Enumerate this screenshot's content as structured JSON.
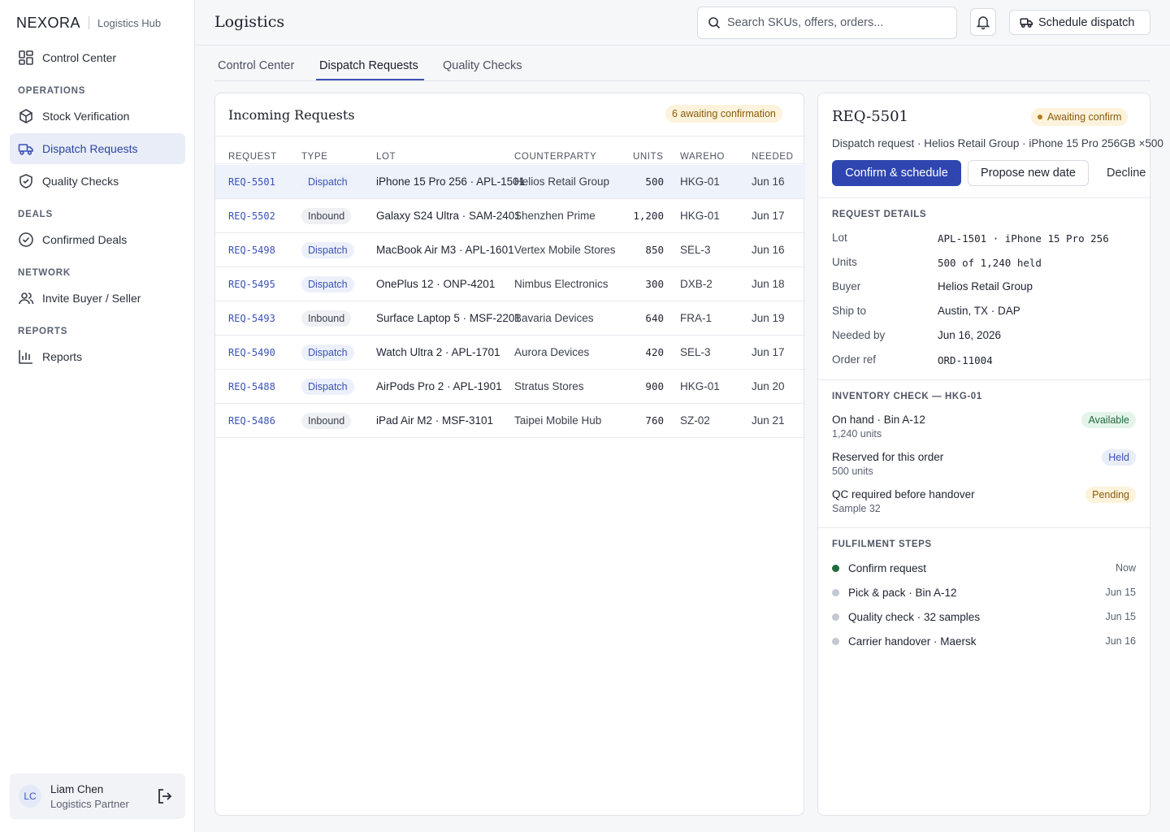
{
  "brand": {
    "name": "NEXORA",
    "sub": "Logistics Hub"
  },
  "sidebar": {
    "top_item": {
      "label": "Control Center",
      "icon": "dashboard-icon"
    },
    "sections": [
      {
        "title": "OPERATIONS",
        "items": [
          {
            "label": "Stock Verification",
            "icon": "box-icon"
          },
          {
            "label": "Dispatch Requests",
            "icon": "truck-icon",
            "active": true
          },
          {
            "label": "Quality Checks",
            "icon": "shield-check-icon"
          }
        ]
      },
      {
        "title": "DEALS",
        "items": [
          {
            "label": "Confirmed Deals",
            "icon": "check-circle-icon"
          }
        ]
      },
      {
        "title": "NETWORK",
        "items": [
          {
            "label": "Invite Buyer / Seller",
            "icon": "users-icon"
          }
        ]
      },
      {
        "title": "REPORTS",
        "items": [
          {
            "label": "Reports",
            "icon": "bar-chart-icon"
          }
        ]
      }
    ],
    "user": {
      "initials": "LC",
      "name": "Liam Chen",
      "role": "Logistics Partner"
    }
  },
  "header": {
    "title": "Logistics",
    "search_placeholder": "Search SKUs, offers, orders...",
    "schedule_label": "Schedule dispatch"
  },
  "tabs": [
    {
      "label": "Control Center"
    },
    {
      "label": "Dispatch Requests",
      "active": true
    },
    {
      "label": "Quality Checks"
    }
  ],
  "requests": {
    "title": "Incoming Requests",
    "awaiting": "6 awaiting confirmation",
    "columns": [
      "REQUEST",
      "TYPE",
      "LOT",
      "COUNTERPARTY",
      "UNITS",
      "WAREHO",
      "NEEDED"
    ],
    "rows": [
      {
        "id": "REQ-5501",
        "type": "Dispatch",
        "lot": "iPhone 15 Pro 256 · APL-1501",
        "counterparty": "Helios Retail Group",
        "units": "500",
        "warehouse": "HKG-01",
        "needed": "Jun 16"
      },
      {
        "id": "REQ-5502",
        "type": "Inbound",
        "lot": "Galaxy S24 Ultra · SAM-2401",
        "counterparty": "Shenzhen Prime",
        "units": "1,200",
        "warehouse": "HKG-01",
        "needed": "Jun 17"
      },
      {
        "id": "REQ-5498",
        "type": "Dispatch",
        "lot": "MacBook Air M3 · APL-1601",
        "counterparty": "Vertex Mobile Stores",
        "units": "850",
        "warehouse": "SEL-3",
        "needed": "Jun 16"
      },
      {
        "id": "REQ-5495",
        "type": "Dispatch",
        "lot": "OnePlus 12 · ONP-4201",
        "counterparty": "Nimbus Electronics",
        "units": "300",
        "warehouse": "DXB-2",
        "needed": "Jun 18"
      },
      {
        "id": "REQ-5493",
        "type": "Inbound",
        "lot": "Surface Laptop 5 · MSF-2201",
        "counterparty": "Bavaria Devices",
        "units": "640",
        "warehouse": "FRA-1",
        "needed": "Jun 19"
      },
      {
        "id": "REQ-5490",
        "type": "Dispatch",
        "lot": "Watch Ultra 2 · APL-1701",
        "counterparty": "Aurora Devices",
        "units": "420",
        "warehouse": "SEL-3",
        "needed": "Jun 17"
      },
      {
        "id": "REQ-5488",
        "type": "Dispatch",
        "lot": "AirPods Pro 2 · APL-1901",
        "counterparty": "Stratus Stores",
        "units": "900",
        "warehouse": "HKG-01",
        "needed": "Jun 20"
      },
      {
        "id": "REQ-5486",
        "type": "Inbound",
        "lot": "iPad Air M2 · MSF-3101",
        "counterparty": "Taipei Mobile Hub",
        "units": "760",
        "warehouse": "SZ-02",
        "needed": "Jun 21"
      }
    ]
  },
  "detail": {
    "id": "REQ-5501",
    "status": "Awaiting confirm",
    "subtitle": "Dispatch request · Helios Retail Group · iPhone 15 Pro 256GB ×500",
    "confirm_label": "Confirm & schedule",
    "propose_label": "Propose new date",
    "decline_label": "Decline",
    "request_details_title": "REQUEST DETAILS",
    "details": [
      {
        "k": "Lot",
        "v": "APL-1501 · iPhone 15 Pro 256",
        "mono": true
      },
      {
        "k": "Units",
        "v": "500 of 1,240 held",
        "mono": true
      },
      {
        "k": "Buyer",
        "v": "Helios Retail Group"
      },
      {
        "k": "Ship to",
        "v": "Austin, TX · DAP"
      },
      {
        "k": "Needed by",
        "v": "Jun 16, 2026"
      },
      {
        "k": "Order ref",
        "v": "ORD-11004",
        "mono": true
      }
    ],
    "inventory_title": "INVENTORY CHECK — HKG-01",
    "inventory": [
      {
        "title": "On hand · Bin A-12",
        "sub": "1,240 units",
        "status": "Available",
        "kind": "available"
      },
      {
        "title": "Reserved for this order",
        "sub": "500 units",
        "status": "Held",
        "kind": "held"
      },
      {
        "title": "QC required before handover",
        "sub": "Sample 32",
        "status": "Pending",
        "kind": "pending"
      }
    ],
    "steps_title": "FULFILMENT STEPS",
    "steps": [
      {
        "label": "Confirm request",
        "when": "Now",
        "done": true
      },
      {
        "label": "Pick & pack · Bin A-12",
        "when": "Jun 15"
      },
      {
        "label": "Quality check · 32 samples",
        "when": "Jun 15"
      },
      {
        "label": "Carrier handover · Maersk",
        "when": "Jun 16"
      }
    ]
  },
  "colors": {
    "accent": "#2f46b0",
    "active_bg": "#e8edf8",
    "success": "#1f6b3c",
    "warning_bg": "#fdf3dc"
  }
}
